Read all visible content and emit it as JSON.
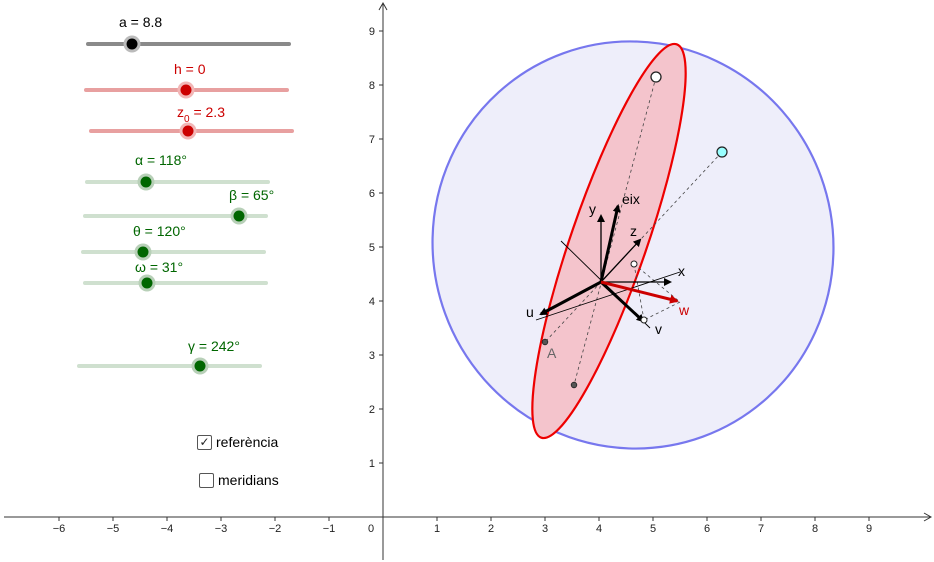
{
  "sliders": {
    "a": {
      "name": "a",
      "value": "8.8",
      "label": "a = 8.8"
    },
    "h": {
      "name": "h",
      "value": "0",
      "label": "h = 0"
    },
    "z0": {
      "name": "z",
      "sub": "0",
      "value": "2.3",
      "label_tail": " = 2.3"
    },
    "alpha": {
      "label": "α = 118°"
    },
    "beta": {
      "label": "β = 65°"
    },
    "theta": {
      "label": "θ = 120°"
    },
    "omega": {
      "label": "ω = 31°"
    },
    "gamma": {
      "label": "γ = 242°"
    }
  },
  "checkboxes": {
    "referencia": {
      "label": "referència",
      "checked": true,
      "mark": "✓"
    },
    "meridians": {
      "label": "meridians",
      "checked": false
    }
  },
  "graph": {
    "x_ticks": [
      "−6",
      "−5",
      "−4",
      "−3",
      "−2",
      "−1",
      "0",
      "1",
      "2",
      "3",
      "4",
      "5",
      "6",
      "7",
      "8",
      "9"
    ],
    "y_ticks": [
      "1",
      "2",
      "3",
      "4",
      "5",
      "6",
      "7",
      "8",
      "9"
    ],
    "vector_labels": {
      "eix": "eix",
      "x": "x",
      "y": "y",
      "z": "z",
      "u": "u",
      "v": "v",
      "w": "w"
    },
    "point_label": "A"
  },
  "colors": {
    "slider_gray": "#8a8a8a",
    "slider_red": "#e8a0a0",
    "slider_green": "#cfe0cf",
    "dot_black": "#000000",
    "dot_red": "#cc0000",
    "dot_green": "#006600",
    "label_red": "#cc0000",
    "label_green": "#006600",
    "ellipse_blue": "#7777ee",
    "ellipse_blue_fill": "#eeeefa",
    "ellipse_red": "#ee0000",
    "ellipse_red_fill": "#f4c4cc",
    "cyan_point": "#99ffff"
  }
}
